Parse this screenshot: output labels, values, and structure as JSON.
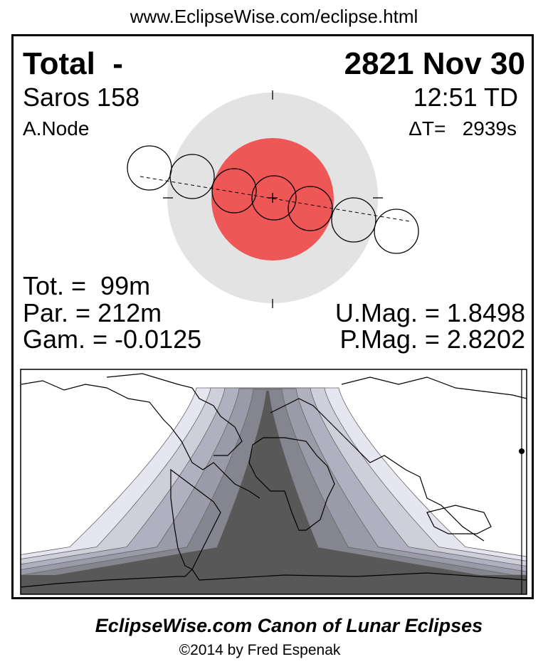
{
  "header_url": "www.EclipseWise.com/eclipse.html",
  "eclipse": {
    "type": "Total  -",
    "date": "2821 Nov 30",
    "saros": "Saros 158",
    "time": "12:51 TD",
    "node": "A.Node",
    "delta_t": "ΔT=   2939s",
    "totality": "Tot. =  99m",
    "partial": "Par. = 212m",
    "gamma": "Gam. = -0.0125",
    "umbral_mag": "U.Mag. = 1.8498",
    "penumbral_mag": "P.Mag. = 2.8202"
  },
  "colors": {
    "penumbra": "#e3e3e3",
    "umbra": "#ef5757",
    "map_bands": [
      "#e6e6f0",
      "#cfcfdc",
      "#b0b0c0",
      "#9a9aa8",
      "#85858f",
      "#585858"
    ]
  },
  "footer": {
    "title": "EclipseWise.com Canon of Lunar Eclipses",
    "copyright": "©2014 by Fred Espenak"
  }
}
